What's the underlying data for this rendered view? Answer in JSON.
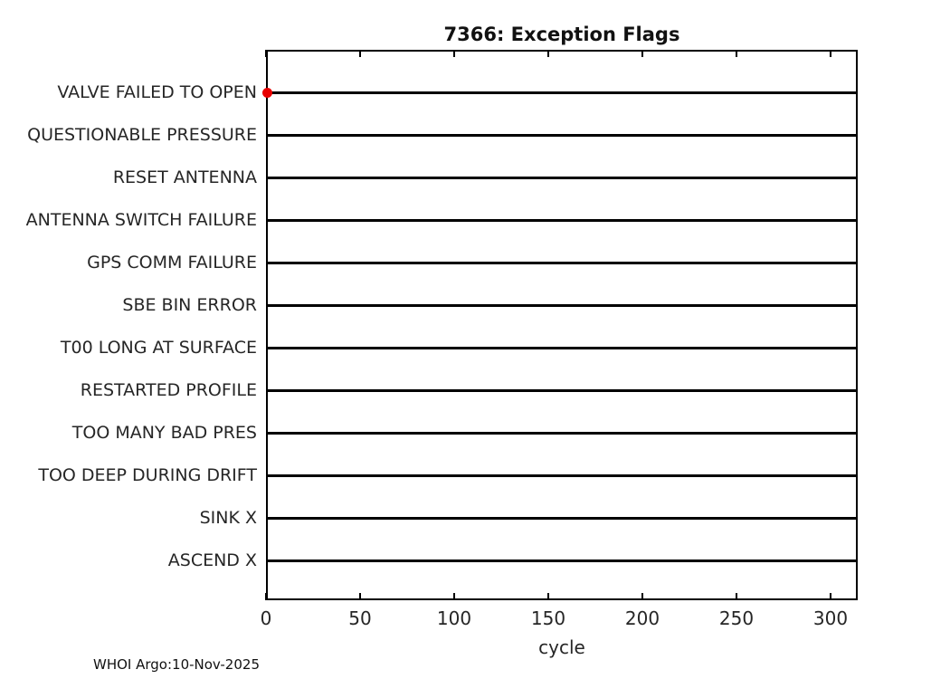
{
  "figure": {
    "footer": "WHOI Argo:10-Nov-2025"
  },
  "chart_data": {
    "type": "scatter",
    "title": "7366: Exception Flags",
    "xlabel": "cycle",
    "ylabel": "",
    "categories": [
      "VALVE FAILED TO OPEN",
      "QUESTIONABLE PRESSURE",
      "RESET ANTENNA",
      "ANTENNA SWITCH FAILURE",
      "GPS COMM FAILURE",
      "SBE BIN ERROR",
      "T00 LONG AT SURFACE",
      "RESTARTED PROFILE",
      "TOO MANY BAD PRES",
      "TOO DEEP DURING DRIFT",
      "SINK X",
      "ASCEND X"
    ],
    "x_ticks": [
      0,
      50,
      100,
      150,
      200,
      250,
      300
    ],
    "xlim": [
      0,
      315
    ],
    "grid": false,
    "legend_position": "none",
    "row_line_color": "#000000",
    "frame_color": "#000000",
    "background_color": "#ffffff",
    "series": [
      {
        "name": "exception-events",
        "marker": "filled-circle",
        "color": "#e80000",
        "points": [
          {
            "category": "VALVE FAILED TO OPEN",
            "x": 0
          }
        ]
      }
    ]
  }
}
